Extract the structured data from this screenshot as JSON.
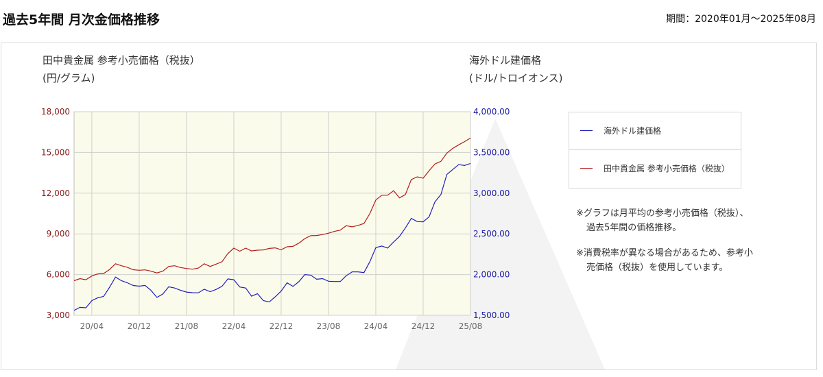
{
  "header": {
    "title": "過去5年間 月次金価格推移",
    "period": "期間：2020年01月〜2025年08月"
  },
  "axis_titles": {
    "left_line1": "田中貴金属 参考小売価格（税抜）",
    "left_line2": "(円/グラム)",
    "right_line1": "海外ドル建価格",
    "right_line2": "(ドル/トロイオンス)"
  },
  "legend": {
    "usd_label": "海外ドル建価格",
    "jpy_label": "田中貴金属 参考小売価格（税抜）"
  },
  "notes": [
    {
      "line1": "※グラフは月平均の参考小売価格（税抜）、",
      "line2": "過去5年間の価格推移。"
    },
    {
      "line1": "※消費税率が異なる場合があるため、参考小",
      "line2": "売価格（税抜）を使用しています。"
    }
  ],
  "chart_data": {
    "type": "line",
    "x": [
      "20/01",
      "20/02",
      "20/03",
      "20/04",
      "20/05",
      "20/06",
      "20/07",
      "20/08",
      "20/09",
      "20/10",
      "20/11",
      "20/12",
      "21/01",
      "21/02",
      "21/03",
      "21/04",
      "21/05",
      "21/06",
      "21/07",
      "21/08",
      "21/09",
      "21/10",
      "21/11",
      "21/12",
      "22/01",
      "22/02",
      "22/03",
      "22/04",
      "22/05",
      "22/06",
      "22/07",
      "22/08",
      "22/09",
      "22/10",
      "22/11",
      "22/12",
      "23/01",
      "23/02",
      "23/03",
      "23/04",
      "23/05",
      "23/06",
      "23/07",
      "23/08",
      "23/09",
      "23/10",
      "23/11",
      "23/12",
      "24/01",
      "24/02",
      "24/03",
      "24/04",
      "24/05",
      "24/06",
      "24/07",
      "24/08",
      "24/09",
      "24/10",
      "24/11",
      "24/12",
      "25/01",
      "25/02",
      "25/03",
      "25/04",
      "25/05",
      "25/06",
      "25/07",
      "25/08"
    ],
    "tick_labels": [
      "20/04",
      "20/12",
      "21/08",
      "22/04",
      "22/12",
      "23/08",
      "24/04",
      "24/12",
      "25/08"
    ],
    "left_axis": {
      "min": 3000,
      "max": 18000,
      "ticks": [
        "3,000",
        "6,000",
        "9,000",
        "12,000",
        "15,000",
        "18,000"
      ]
    },
    "right_axis": {
      "min": 1500,
      "max": 4000,
      "ticks": [
        "1,500.00",
        "2,000.00",
        "2,500.00",
        "3,000.00",
        "3,500.00",
        "4,000.00"
      ]
    },
    "grid": true,
    "legend_position": "right",
    "series": [
      {
        "name": "海外ドル建価格",
        "axis": "right",
        "color": "#1f1fbf",
        "values": [
          1560,
          1598,
          1593,
          1680,
          1715,
          1732,
          1845,
          1970,
          1925,
          1900,
          1866,
          1858,
          1867,
          1806,
          1720,
          1762,
          1850,
          1835,
          1807,
          1785,
          1778,
          1776,
          1821,
          1790,
          1817,
          1856,
          1947,
          1937,
          1848,
          1835,
          1735,
          1765,
          1680,
          1665,
          1727,
          1797,
          1899,
          1855,
          1913,
          2000,
          1993,
          1943,
          1950,
          1918,
          1915,
          1915,
          1986,
          2034,
          2034,
          2024,
          2159,
          2331,
          2351,
          2326,
          2400,
          2470,
          2572,
          2690,
          2651,
          2648,
          2709,
          2894,
          2983,
          3229,
          3290,
          3350,
          3340,
          3365
        ]
      },
      {
        "name": "田中貴金属 参考小売価格（税抜）",
        "axis": "left",
        "color": "#b01c1c",
        "values": [
          5550,
          5700,
          5620,
          5900,
          6050,
          6080,
          6380,
          6800,
          6650,
          6540,
          6360,
          6320,
          6350,
          6250,
          6120,
          6250,
          6600,
          6650,
          6520,
          6450,
          6400,
          6480,
          6800,
          6600,
          6770,
          6950,
          7550,
          7950,
          7720,
          7950,
          7740,
          7800,
          7820,
          7930,
          7970,
          7830,
          8050,
          8080,
          8320,
          8650,
          8870,
          8880,
          8950,
          9050,
          9180,
          9280,
          9600,
          9520,
          9620,
          9770,
          10500,
          11500,
          11850,
          11850,
          12180,
          11650,
          11900,
          13000,
          13200,
          13100,
          13650,
          14150,
          14350,
          14950,
          15300,
          15560,
          15800,
          16060
        ]
      }
    ]
  }
}
